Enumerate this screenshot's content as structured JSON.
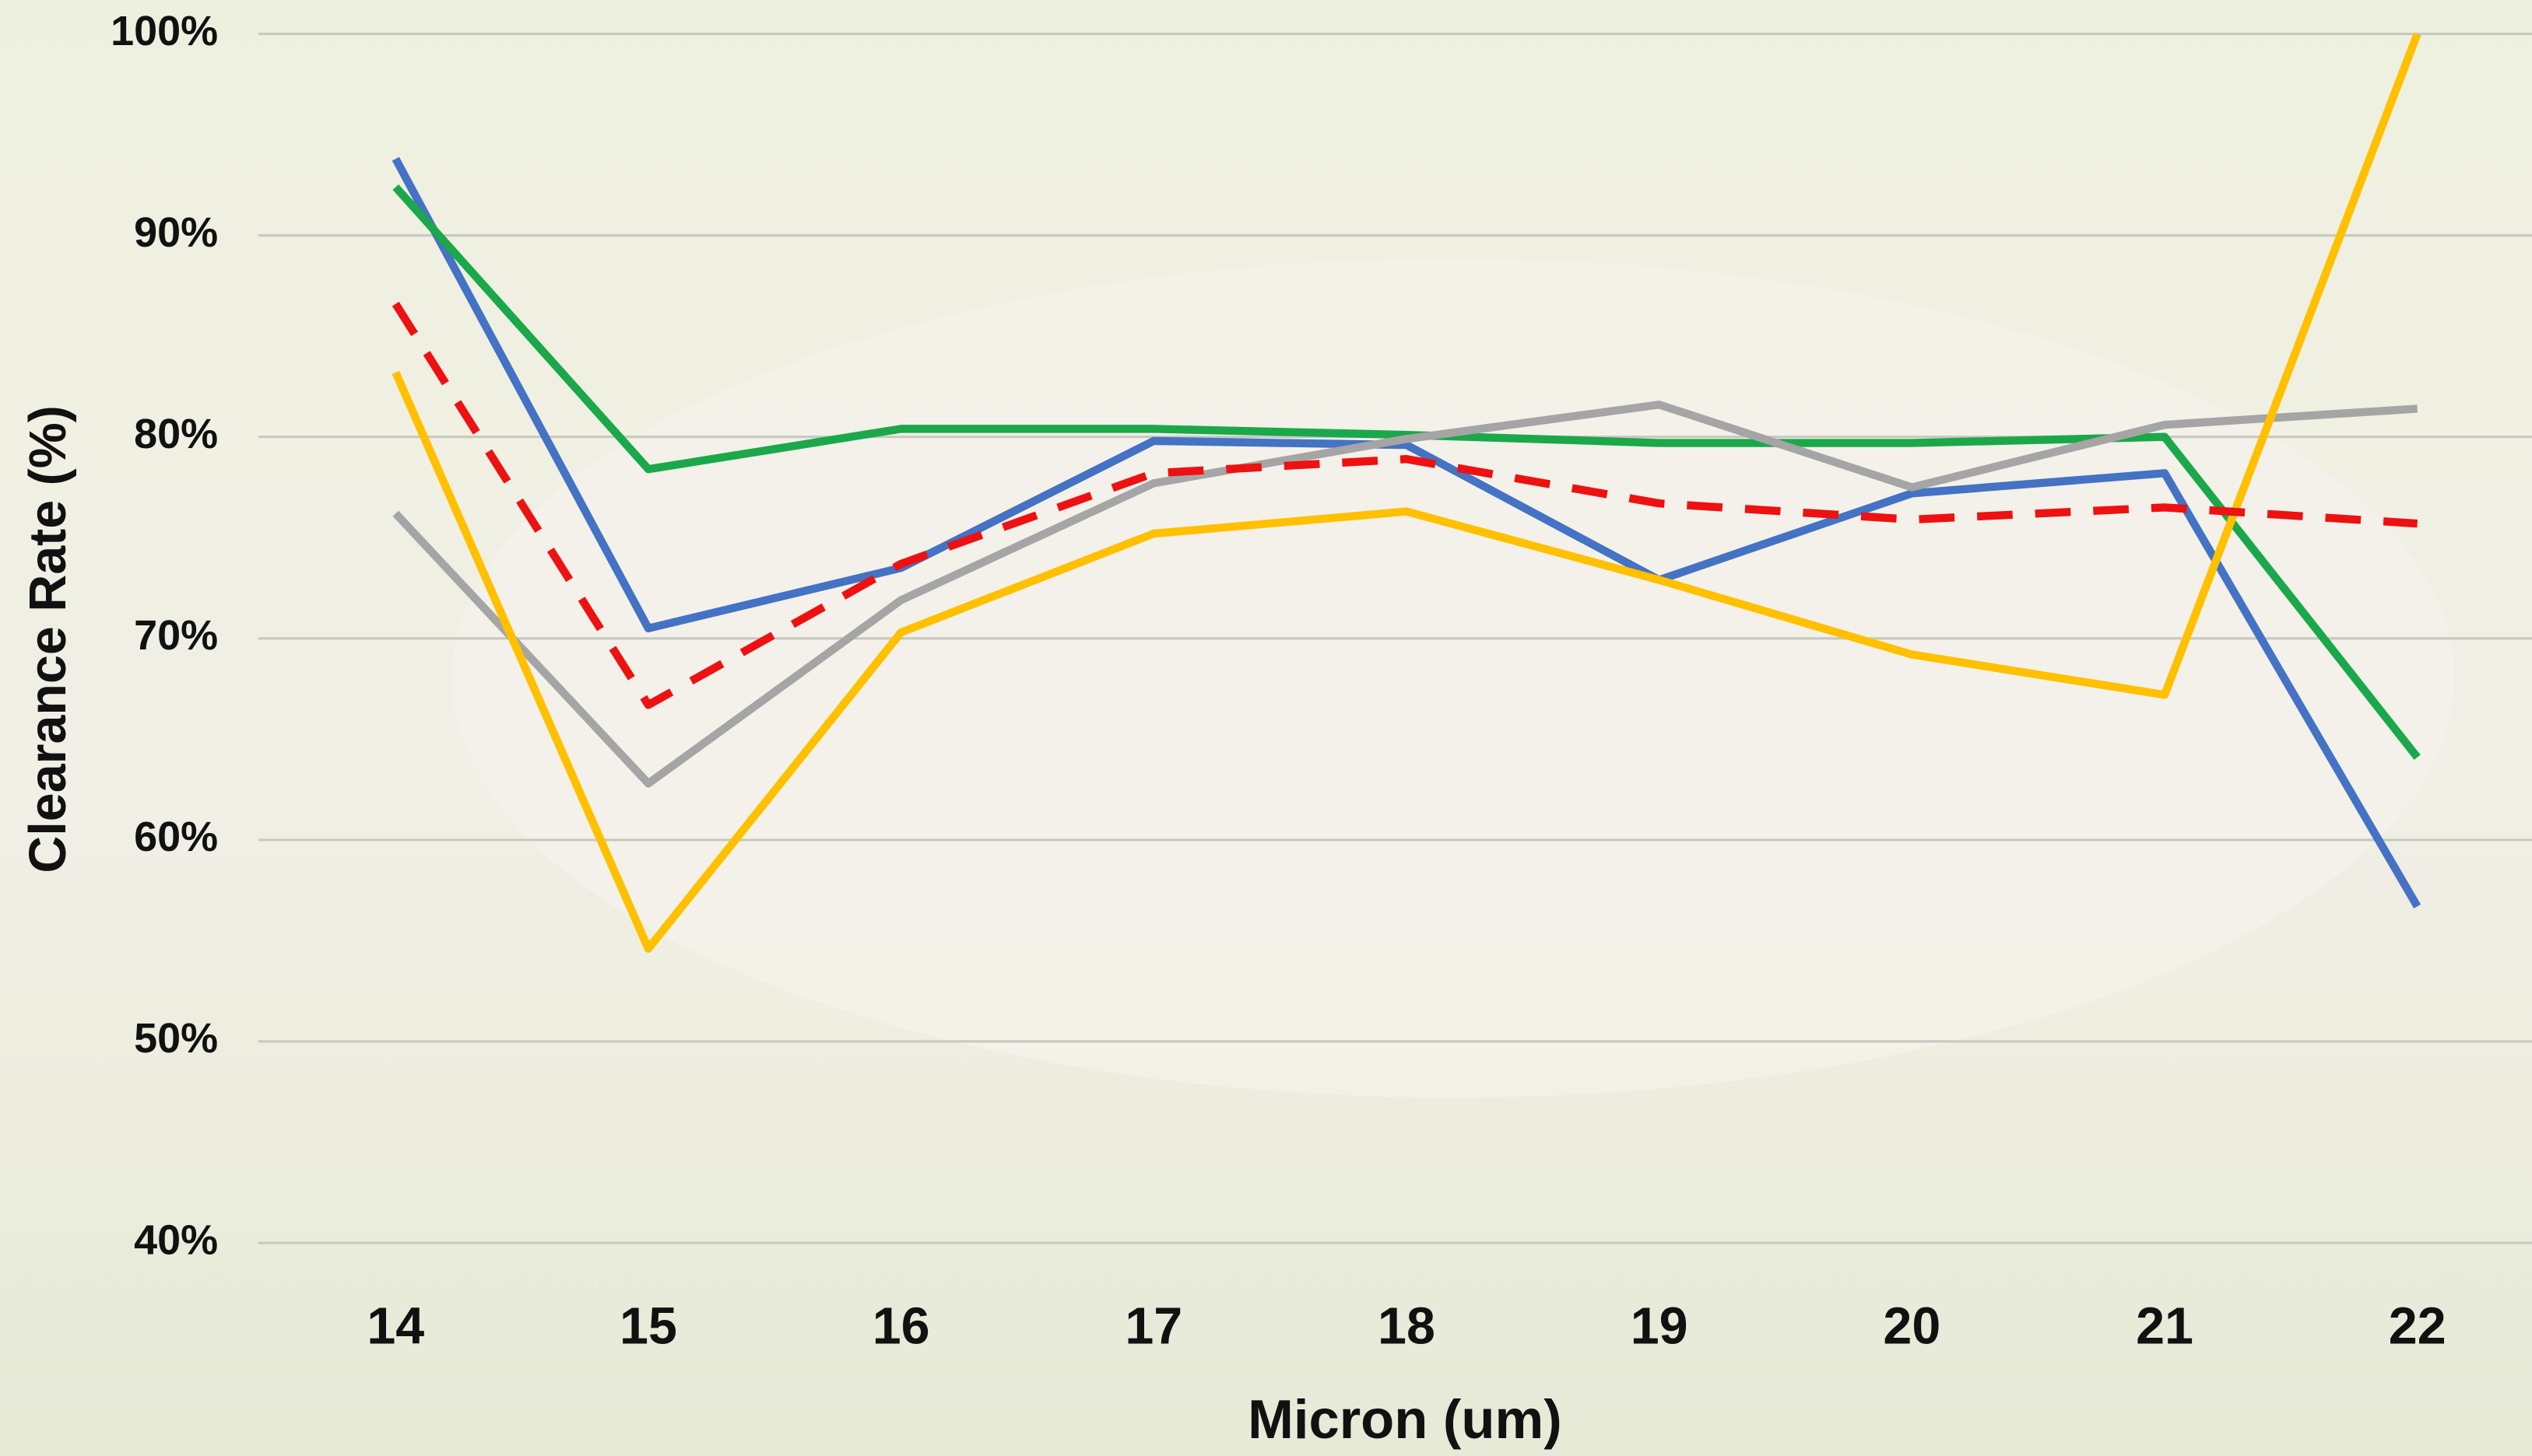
{
  "chart_data": {
    "type": "line",
    "x_label": "Micron (um)",
    "y_label": "Clearance Rate (%)",
    "categories": [
      "14",
      "15",
      "16",
      "17",
      "18",
      "19",
      "20",
      "21",
      "22"
    ],
    "series": [
      {
        "color": "#4472c4",
        "values": [
          93.8,
          70.5,
          73.5,
          79.8,
          79.6,
          72.9,
          77.2,
          78.2,
          56.7
        ]
      },
      {
        "color": "#1aa84a",
        "values": [
          92.4,
          78.4,
          80.4,
          80.4,
          80.1,
          79.7,
          79.7,
          80.0,
          64.1
        ]
      },
      {
        "color": "#a5a5a5",
        "values": [
          76.2,
          62.8,
          71.9,
          77.7,
          79.9,
          81.6,
          77.5,
          80.6,
          81.4
        ]
      },
      {
        "color": "#ffc000",
        "values": [
          83.2,
          54.6,
          70.3,
          75.2,
          76.3,
          72.9,
          69.2,
          67.2,
          100
        ]
      },
      {
        "color": "#ee1111",
        "style": "dashed",
        "values": [
          86.6,
          66.7,
          73.7,
          78.2,
          78.9,
          76.7,
          75.9,
          76.5,
          75.7
        ]
      }
    ],
    "ylim": [
      40,
      100
    ],
    "yticks": [
      {
        "value": 40,
        "label": "40%"
      },
      {
        "value": 50,
        "label": "50%"
      },
      {
        "value": 60,
        "label": "60%"
      },
      {
        "value": 70,
        "label": "70%"
      },
      {
        "value": 80,
        "label": "80%"
      },
      {
        "value": 90,
        "label": "90%"
      },
      {
        "value": 100,
        "label": "100%"
      }
    ],
    "grid": true
  }
}
